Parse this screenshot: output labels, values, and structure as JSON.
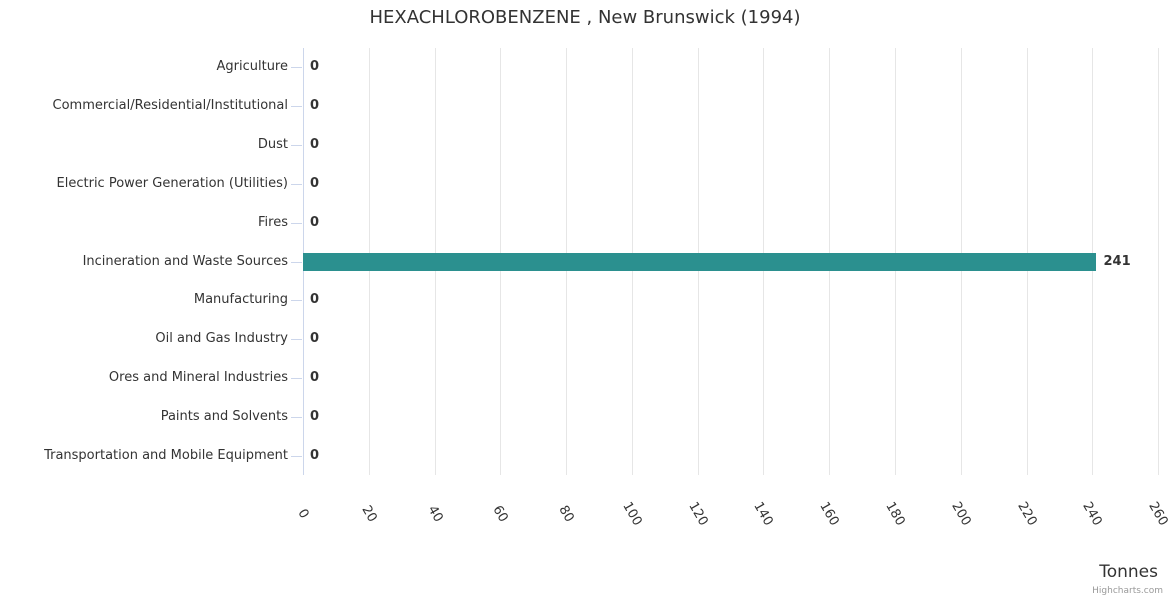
{
  "chart_data": {
    "type": "bar",
    "orientation": "horizontal",
    "title": "HEXACHLOROBENZENE , New Brunswick (1994)",
    "categories": [
      "Agriculture",
      "Commercial/Residential/Institutional",
      "Dust",
      "Electric Power Generation (Utilities)",
      "Fires",
      "Incineration and Waste Sources",
      "Manufacturing",
      "Oil and Gas Industry",
      "Ores and Mineral Industries",
      "Paints and Solvents",
      "Transportation and Mobile Equipment"
    ],
    "values": [
      0,
      0,
      0,
      0,
      0,
      241,
      0,
      0,
      0,
      0,
      0
    ],
    "data_labels": [
      "0",
      "0",
      "0",
      "0",
      "0",
      "241",
      "0",
      "0",
      "0",
      "0",
      "0"
    ],
    "xlabel": "Tonnes",
    "xlim": [
      0,
      260
    ],
    "x_tick_step": 20,
    "x_tick_labels": [
      "0",
      "20",
      "40",
      "60",
      "80",
      "100",
      "120",
      "140",
      "160",
      "180",
      "200",
      "220",
      "240",
      "260"
    ],
    "bar_color": "#2b908f",
    "grid": true,
    "gridline_color": "#e6e6e6",
    "axis_line_color": "#ccd6eb",
    "label_color": "#333333",
    "legend": "off",
    "credit": "Highcharts.com"
  }
}
